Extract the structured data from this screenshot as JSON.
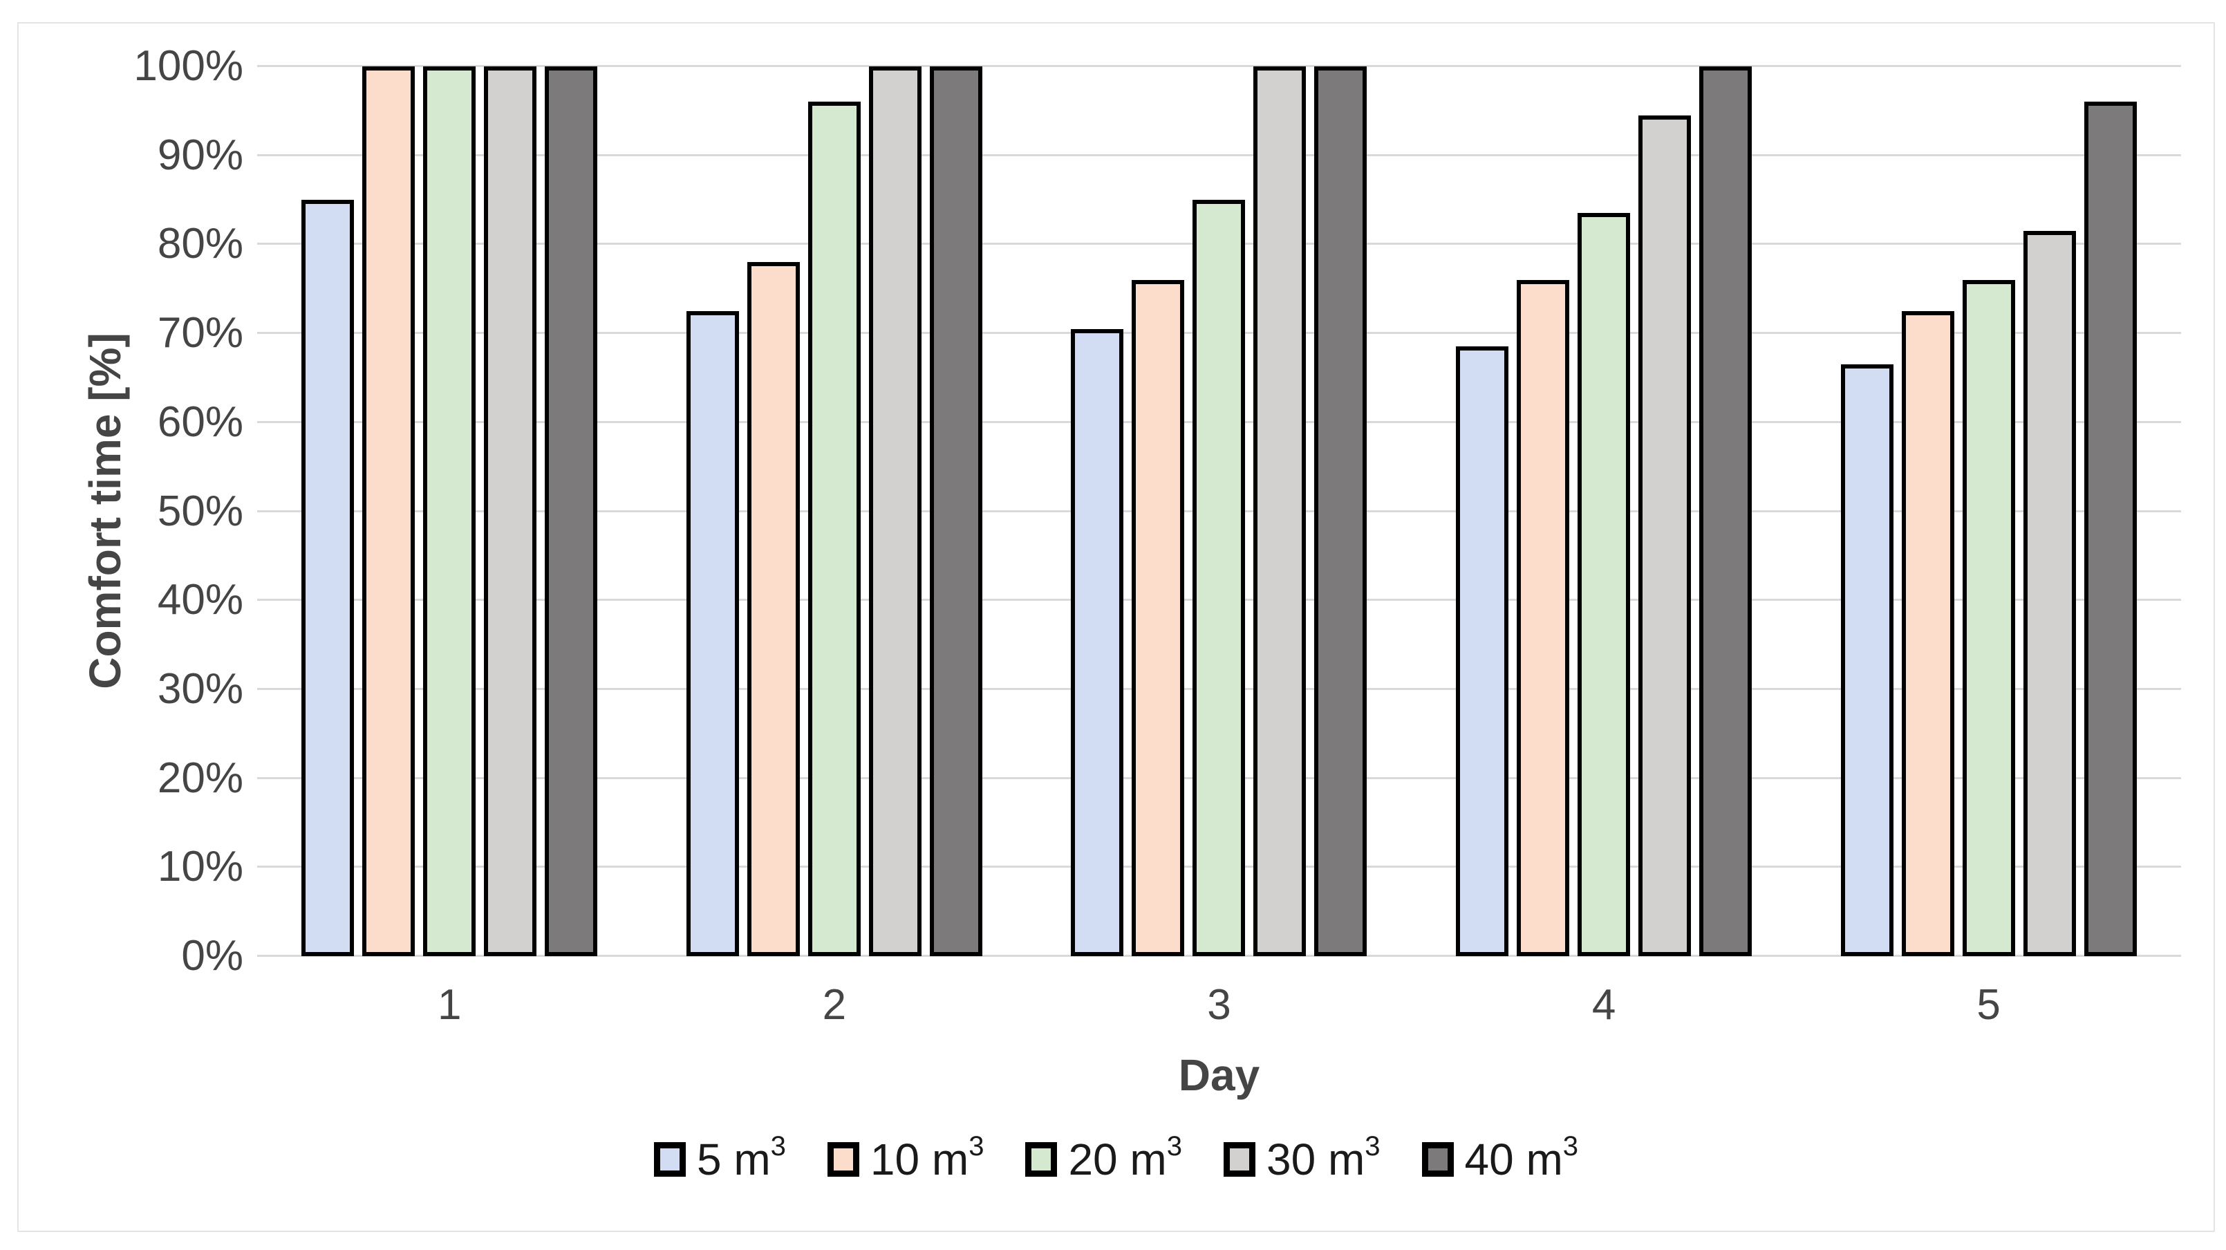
{
  "chart_data": {
    "type": "bar",
    "title": "",
    "xlabel": "Day",
    "ylabel": "Comfort time [%]",
    "categories": [
      "1",
      "2",
      "3",
      "4",
      "5"
    ],
    "y_ticks": [
      "0%",
      "10%",
      "20%",
      "30%",
      "40%",
      "50%",
      "60%",
      "70%",
      "80%",
      "90%",
      "100%"
    ],
    "ylim": [
      0,
      100
    ],
    "grid": true,
    "legend_position": "bottom",
    "bar_outline_color": "#000000",
    "gridline_color": "#d9d9d9",
    "axis_text_color": "#454545",
    "legend_text_color": "#1a1a1a",
    "series": [
      {
        "name": "5 m³",
        "legend_text": "5 m",
        "legend_sup": "3",
        "color": "#d2dcf2",
        "values": [
          85,
          72.5,
          70.5,
          68.5,
          66.5
        ]
      },
      {
        "name": "10 m³",
        "legend_text": "10 m",
        "legend_sup": "3",
        "color": "#fcdcca",
        "values": [
          100,
          78,
          76,
          76,
          72.5
        ]
      },
      {
        "name": "20 m³",
        "legend_text": "20 m",
        "legend_sup": "3",
        "color": "#d5e8d0",
        "values": [
          100,
          96,
          85,
          83.5,
          76
        ]
      },
      {
        "name": "30 m³",
        "legend_text": "30 m",
        "legend_sup": "3",
        "color": "#d3d0d0",
        "values": [
          100,
          100,
          100,
          94.5,
          81.5
        ]
      },
      {
        "name": "40 m³",
        "legend_text": "40 m",
        "legend_sup": "3",
        "color": "#7c7a7a",
        "values": [
          100,
          100,
          100,
          100,
          96
        ]
      }
    ]
  }
}
